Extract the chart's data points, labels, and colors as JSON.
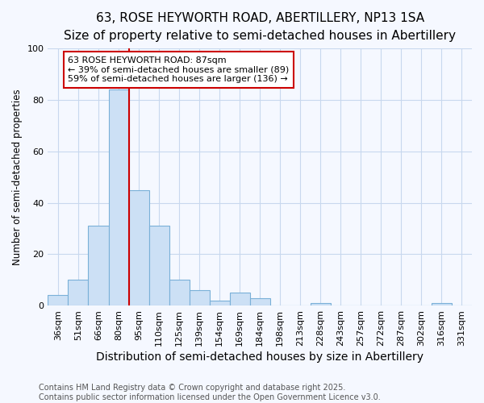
{
  "title": "63, ROSE HEYWORTH ROAD, ABERTILLERY, NP13 1SA",
  "subtitle": "Size of property relative to semi-detached houses in Abertillery",
  "xlabel": "Distribution of semi-detached houses by size in Abertillery",
  "ylabel": "Number of semi-detached properties",
  "categories": [
    "36sqm",
    "51sqm",
    "66sqm",
    "80sqm",
    "95sqm",
    "110sqm",
    "125sqm",
    "139sqm",
    "154sqm",
    "169sqm",
    "184sqm",
    "198sqm",
    "213sqm",
    "228sqm",
    "243sqm",
    "257sqm",
    "272sqm",
    "287sqm",
    "302sqm",
    "316sqm",
    "331sqm"
  ],
  "values": [
    4,
    10,
    31,
    84,
    45,
    31,
    10,
    6,
    2,
    5,
    3,
    0,
    0,
    1,
    0,
    0,
    0,
    0,
    0,
    1,
    0
  ],
  "bar_color": "#cce0f5",
  "bar_edge_color": "#7ab0d8",
  "vline_color": "#cc0000",
  "annotation_title": "63 ROSE HEYWORTH ROAD: 87sqm",
  "annotation_line1": "← 39% of semi-detached houses are smaller (89)",
  "annotation_line2": "59% of semi-detached houses are larger (136) →",
  "annotation_box_edge": "#cc0000",
  "footer_line1": "Contains HM Land Registry data © Crown copyright and database right 2025.",
  "footer_line2": "Contains public sector information licensed under the Open Government Licence v3.0.",
  "ylim": [
    0,
    100
  ],
  "yticks": [
    0,
    20,
    40,
    60,
    80,
    100
  ],
  "title_fontsize": 11,
  "subtitle_fontsize": 9.5,
  "xlabel_fontsize": 10,
  "ylabel_fontsize": 8.5,
  "tick_fontsize": 8,
  "footer_fontsize": 7,
  "grid_color": "#c8d8ee",
  "bg_color": "#f5f8ff"
}
